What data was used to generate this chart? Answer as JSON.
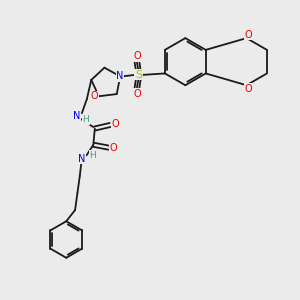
{
  "background_color": "#ebebeb",
  "figure_size": [
    3.0,
    3.0
  ],
  "dpi": 100,
  "colors": {
    "C": "#1a1a1a",
    "N": "#0000ee",
    "O": "#ee0000",
    "S": "#bbbb00",
    "H": "#4a9a8a"
  },
  "lw": 1.3,
  "fs": 6.5
}
